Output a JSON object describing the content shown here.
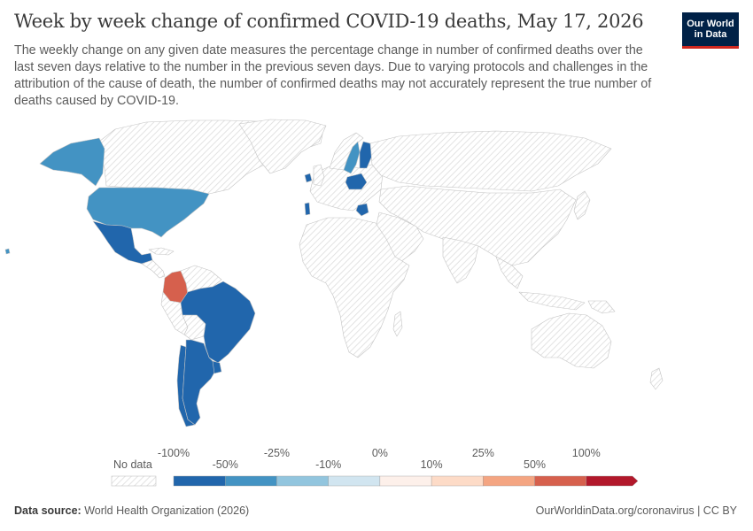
{
  "header": {
    "title": "Week by week change of confirmed COVID-19 deaths, May 17, 2026",
    "subtitle": "The weekly change on any given date measures the percentage change in number of confirmed deaths over the last seven days relative to the number in the previous seven days. Due to varying protocols and challenges in the attribution of the cause of death, the number of confirmed deaths may not accurately represent the true number of deaths caused by COVID-19.",
    "logo_line1": "Our World",
    "logo_line2": "in Data"
  },
  "legend": {
    "no_data_label": "No data",
    "bins": [
      {
        "label": "-100%",
        "color": "#2166ac"
      },
      {
        "label": "-50%",
        "color": "#4393c3"
      },
      {
        "label": "-25%",
        "color": "#92c5de"
      },
      {
        "label": "-10%",
        "color": "#d1e5f0"
      },
      {
        "label": "0%",
        "color": "#fdf0ea"
      },
      {
        "label": "10%",
        "color": "#fddbc7"
      },
      {
        "label": "25%",
        "color": "#f4a582"
      },
      {
        "label": "50%",
        "color": "#d6604d"
      },
      {
        "label": "100%",
        "color": "#b2182b"
      }
    ]
  },
  "map_data": {
    "colors": {
      "no_data": "#ffffff",
      "land_outline": "#c8c8c8",
      "hatch": "#dddddd"
    },
    "countries": [
      {
        "name": "United States",
        "bin": "-50% to -25%"
      },
      {
        "name": "Alaska (United States)",
        "bin": "-50% to -25%"
      },
      {
        "name": "Mexico",
        "bin": "-100% to -50%"
      },
      {
        "name": "Colombia",
        "bin": "50% to 100%"
      },
      {
        "name": "Brazil",
        "bin": "-100% to -50%"
      },
      {
        "name": "Argentina",
        "bin": "-100% to -50%"
      },
      {
        "name": "Chile",
        "bin": "-100% to -50%"
      },
      {
        "name": "Uruguay",
        "bin": "-100% to -50%"
      },
      {
        "name": "Sweden",
        "bin": "-50% to -25%"
      },
      {
        "name": "Finland",
        "bin": "-100% to -50%"
      },
      {
        "name": "Poland",
        "bin": "-100% to -50%"
      },
      {
        "name": "Ireland",
        "bin": "-100% to -50%"
      },
      {
        "name": "Portugal",
        "bin": "-100% to -50%"
      },
      {
        "name": "Greece",
        "bin": "-100% to -50%"
      },
      {
        "name": "Hawaii (United States)",
        "bin": "-50% to -25%"
      }
    ]
  },
  "footer": {
    "source_label": "Data source:",
    "source_value": "World Health Organization (2026)",
    "url": "OurWorldinData.org/coronavirus | CC BY"
  }
}
